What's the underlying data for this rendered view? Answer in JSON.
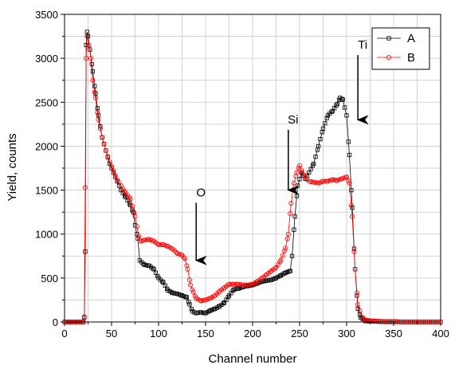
{
  "chart_data": {
    "type": "scatter",
    "xlabel": "Channel number",
    "ylabel": "Yield, counts",
    "xlim": [
      0,
      400
    ],
    "ylim": [
      0,
      3500
    ],
    "xticks": [
      0,
      50,
      100,
      150,
      200,
      250,
      300,
      350,
      400
    ],
    "yticks": [
      0,
      500,
      1000,
      1500,
      2000,
      2500,
      3000,
      3500
    ],
    "grid": true,
    "legend_position": "top-right",
    "series": [
      {
        "name": "A",
        "color": "#000000",
        "marker": "square",
        "points": [
          [
            0,
            0
          ],
          [
            5,
            0
          ],
          [
            10,
            0
          ],
          [
            15,
            0
          ],
          [
            20,
            0
          ],
          [
            21,
            50
          ],
          [
            22,
            800
          ],
          [
            23,
            3150
          ],
          [
            24,
            3300
          ],
          [
            25,
            3250
          ],
          [
            27,
            3100
          ],
          [
            30,
            2850
          ],
          [
            33,
            2600
          ],
          [
            36,
            2350
          ],
          [
            40,
            2100
          ],
          [
            44,
            1950
          ],
          [
            48,
            1800
          ],
          [
            52,
            1700
          ],
          [
            56,
            1600
          ],
          [
            60,
            1500
          ],
          [
            65,
            1420
          ],
          [
            70,
            1330
          ],
          [
            73,
            1250
          ],
          [
            75,
            1100
          ],
          [
            78,
            950
          ],
          [
            80,
            700
          ],
          [
            85,
            650
          ],
          [
            90,
            640
          ],
          [
            95,
            600
          ],
          [
            100,
            500
          ],
          [
            105,
            450
          ],
          [
            110,
            360
          ],
          [
            115,
            330
          ],
          [
            120,
            320
          ],
          [
            125,
            300
          ],
          [
            130,
            280
          ],
          [
            133,
            200
          ],
          [
            136,
            120
          ],
          [
            140,
            100
          ],
          [
            145,
            110
          ],
          [
            150,
            100
          ],
          [
            155,
            130
          ],
          [
            160,
            150
          ],
          [
            165,
            180
          ],
          [
            170,
            220
          ],
          [
            175,
            300
          ],
          [
            180,
            370
          ],
          [
            185,
            380
          ],
          [
            190,
            400
          ],
          [
            195,
            410
          ],
          [
            200,
            420
          ],
          [
            205,
            440
          ],
          [
            210,
            460
          ],
          [
            215,
            470
          ],
          [
            220,
            480
          ],
          [
            225,
            500
          ],
          [
            230,
            530
          ],
          [
            235,
            560
          ],
          [
            240,
            580
          ],
          [
            242,
            750
          ],
          [
            245,
            1200
          ],
          [
            248,
            1550
          ],
          [
            252,
            1700
          ],
          [
            256,
            1630
          ],
          [
            260,
            1700
          ],
          [
            265,
            1800
          ],
          [
            270,
            2000
          ],
          [
            275,
            2200
          ],
          [
            280,
            2350
          ],
          [
            285,
            2400
          ],
          [
            290,
            2480
          ],
          [
            293,
            2550
          ],
          [
            296,
            2530
          ],
          [
            300,
            2350
          ],
          [
            303,
            1900
          ],
          [
            306,
            1300
          ],
          [
            309,
            600
          ],
          [
            312,
            150
          ],
          [
            315,
            50
          ],
          [
            320,
            10
          ],
          [
            330,
            5
          ],
          [
            340,
            0
          ],
          [
            350,
            0
          ],
          [
            360,
            0
          ],
          [
            370,
            0
          ],
          [
            380,
            0
          ],
          [
            390,
            0
          ],
          [
            400,
            0
          ]
        ]
      },
      {
        "name": "B",
        "color": "#ff0000",
        "marker": "circle",
        "points": [
          [
            0,
            0
          ],
          [
            5,
            0
          ],
          [
            10,
            0
          ],
          [
            15,
            0
          ],
          [
            20,
            0
          ],
          [
            21,
            60
          ],
          [
            22,
            1530
          ],
          [
            23,
            3000
          ],
          [
            24,
            3250
          ],
          [
            26,
            3150
          ],
          [
            28,
            3000
          ],
          [
            30,
            2750
          ],
          [
            33,
            2550
          ],
          [
            36,
            2300
          ],
          [
            40,
            2100
          ],
          [
            44,
            1950
          ],
          [
            48,
            1820
          ],
          [
            52,
            1720
          ],
          [
            56,
            1620
          ],
          [
            60,
            1550
          ],
          [
            65,
            1470
          ],
          [
            70,
            1400
          ],
          [
            75,
            1200
          ],
          [
            80,
            920
          ],
          [
            85,
            930
          ],
          [
            90,
            940
          ],
          [
            95,
            920
          ],
          [
            100,
            880
          ],
          [
            105,
            880
          ],
          [
            110,
            860
          ],
          [
            115,
            830
          ],
          [
            120,
            780
          ],
          [
            125,
            760
          ],
          [
            128,
            720
          ],
          [
            131,
            600
          ],
          [
            134,
            420
          ],
          [
            137,
            340
          ],
          [
            140,
            270
          ],
          [
            145,
            240
          ],
          [
            150,
            250
          ],
          [
            155,
            270
          ],
          [
            160,
            300
          ],
          [
            165,
            350
          ],
          [
            170,
            390
          ],
          [
            175,
            430
          ],
          [
            180,
            430
          ],
          [
            185,
            430
          ],
          [
            190,
            420
          ],
          [
            195,
            420
          ],
          [
            200,
            430
          ],
          [
            205,
            460
          ],
          [
            210,
            500
          ],
          [
            215,
            540
          ],
          [
            220,
            580
          ],
          [
            225,
            620
          ],
          [
            230,
            700
          ],
          [
            235,
            840
          ],
          [
            238,
            1000
          ],
          [
            241,
            1350
          ],
          [
            244,
            1580
          ],
          [
            247,
            1700
          ],
          [
            250,
            1780
          ],
          [
            253,
            1700
          ],
          [
            256,
            1640
          ],
          [
            260,
            1600
          ],
          [
            265,
            1590
          ],
          [
            270,
            1580
          ],
          [
            275,
            1600
          ],
          [
            280,
            1600
          ],
          [
            285,
            1620
          ],
          [
            290,
            1610
          ],
          [
            295,
            1630
          ],
          [
            300,
            1650
          ],
          [
            303,
            1580
          ],
          [
            306,
            1200
          ],
          [
            309,
            600
          ],
          [
            312,
            200
          ],
          [
            316,
            60
          ],
          [
            320,
            20
          ],
          [
            330,
            10
          ],
          [
            340,
            5
          ],
          [
            350,
            5
          ],
          [
            360,
            0
          ],
          [
            370,
            0
          ],
          [
            380,
            0
          ],
          [
            390,
            0
          ],
          [
            400,
            0
          ]
        ]
      }
    ],
    "annotations": [
      {
        "text": "O",
        "x": 140,
        "y": 1320,
        "arrow_to_y": 700
      },
      {
        "text": "Si",
        "x": 238,
        "y": 2150,
        "arrow_to_y": 1500
      },
      {
        "text": "Ti",
        "x": 312,
        "y": 3000,
        "arrow_to_y": 2300
      }
    ]
  }
}
